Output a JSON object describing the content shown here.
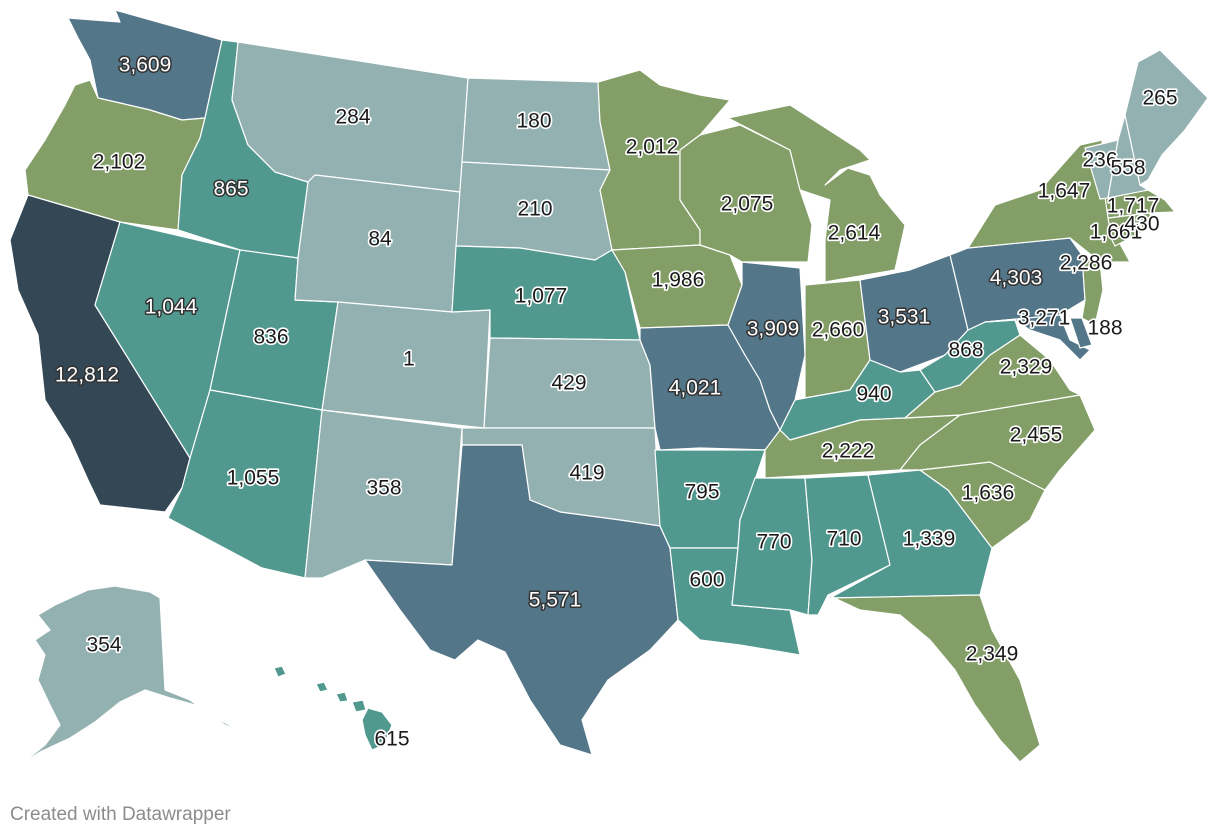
{
  "footer": {
    "credit": "Created with Datawrapper"
  },
  "colors": {
    "light": "#93b1b1",
    "teal": "#51998f",
    "slate": "#547689",
    "dark": "#344755",
    "green": "#839f67"
  },
  "states": [
    {
      "id": "WA",
      "value": "3,609",
      "color": "slate"
    },
    {
      "id": "OR",
      "value": "2,102",
      "color": "green"
    },
    {
      "id": "CA",
      "value": "12,812",
      "color": "dark"
    },
    {
      "id": "ID",
      "value": "865",
      "color": "teal"
    },
    {
      "id": "NV",
      "value": "1,044",
      "color": "teal"
    },
    {
      "id": "UT",
      "value": "836",
      "color": "teal"
    },
    {
      "id": "AZ",
      "value": "1,055",
      "color": "teal"
    },
    {
      "id": "MT",
      "value": "284",
      "color": "light"
    },
    {
      "id": "WY",
      "value": "84",
      "color": "light"
    },
    {
      "id": "CO",
      "value": "1",
      "color": "light"
    },
    {
      "id": "NM",
      "value": "358",
      "color": "light"
    },
    {
      "id": "ND",
      "value": "180",
      "color": "light"
    },
    {
      "id": "SD",
      "value": "210",
      "color": "light"
    },
    {
      "id": "NE",
      "value": "1,077",
      "color": "teal"
    },
    {
      "id": "KS",
      "value": "429",
      "color": "light"
    },
    {
      "id": "OK",
      "value": "419",
      "color": "light"
    },
    {
      "id": "TX",
      "value": "5,571",
      "color": "slate"
    },
    {
      "id": "MN",
      "value": "2,012",
      "color": "green"
    },
    {
      "id": "IA",
      "value": "1,986",
      "color": "green"
    },
    {
      "id": "MO",
      "value": "4,021",
      "color": "slate"
    },
    {
      "id": "AR",
      "value": "795",
      "color": "teal"
    },
    {
      "id": "LA",
      "value": "600",
      "color": "teal"
    },
    {
      "id": "WI",
      "value": "2,075",
      "color": "green"
    },
    {
      "id": "IL",
      "value": "3,909",
      "color": "slate"
    },
    {
      "id": "MI",
      "value": "2,614",
      "color": "green"
    },
    {
      "id": "IN",
      "value": "2,660",
      "color": "green"
    },
    {
      "id": "OH",
      "value": "3,531",
      "color": "slate"
    },
    {
      "id": "KY",
      "value": "940",
      "color": "teal"
    },
    {
      "id": "TN",
      "value": "2,222",
      "color": "green"
    },
    {
      "id": "MS",
      "value": "770",
      "color": "teal"
    },
    {
      "id": "AL",
      "value": "710",
      "color": "teal"
    },
    {
      "id": "GA",
      "value": "1,339",
      "color": "teal"
    },
    {
      "id": "FL",
      "value": "2,349",
      "color": "green"
    },
    {
      "id": "SC",
      "value": "1,636",
      "color": "green"
    },
    {
      "id": "NC",
      "value": "2,455",
      "color": "green"
    },
    {
      "id": "VA",
      "value": "2,329",
      "color": "green"
    },
    {
      "id": "WV",
      "value": "868",
      "color": "teal"
    },
    {
      "id": "PA",
      "value": "4,303",
      "color": "slate"
    },
    {
      "id": "NY",
      "value": "1,647",
      "color": "green"
    },
    {
      "id": "NJ",
      "value": "2,286",
      "color": "green"
    },
    {
      "id": "MD",
      "value": "3,271",
      "color": "slate"
    },
    {
      "id": "DE",
      "value": "188",
      "color": "slate"
    },
    {
      "id": "CT",
      "value": "1,661",
      "color": "green"
    },
    {
      "id": "RI",
      "value": "430",
      "color": "green"
    },
    {
      "id": "MA",
      "value": "1,717",
      "color": "green"
    },
    {
      "id": "VT",
      "value": "236",
      "color": "light"
    },
    {
      "id": "NH",
      "value": "558",
      "color": "light"
    },
    {
      "id": "ME",
      "value": "265",
      "color": "light"
    },
    {
      "id": "AK",
      "value": "354",
      "color": "light"
    },
    {
      "id": "HI",
      "value": "615",
      "color": "teal"
    }
  ]
}
